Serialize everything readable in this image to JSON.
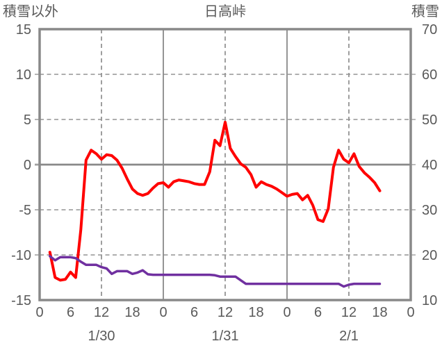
{
  "header": {
    "left_axis_title": "積雪以外",
    "chart_title": "日高峠",
    "right_axis_title": "積雪"
  },
  "colors": {
    "temperature_line": "#FF0000",
    "snow_line": "#7030A0",
    "axis_border": "#898989",
    "solid_grid": "#898989",
    "dashed_grid": "#949494",
    "tick_mark": "#A0A0A0",
    "text": "#595959",
    "background": "#FFFFFF"
  },
  "chart_data": {
    "type": "line",
    "title": "日高峠",
    "left_axis": {
      "label": "積雪以外",
      "min": -15,
      "max": 15,
      "tick_values": [
        15,
        10,
        5,
        0,
        -5,
        -10,
        -15
      ],
      "tick_labels": [
        "15",
        "10",
        "5",
        "0",
        "-5",
        "-10",
        "-15"
      ],
      "dashed_gridline_values": [
        10,
        5,
        -5,
        -10
      ],
      "solid_zero_value": 0
    },
    "right_axis": {
      "label": "積雪",
      "min": 10,
      "max": 70,
      "tick_values": [
        70,
        60,
        50,
        40,
        30,
        20,
        10
      ],
      "tick_labels": [
        "70",
        "60",
        "50",
        "40",
        "30",
        "20",
        "10"
      ]
    },
    "x_axis": {
      "min_hour": 0,
      "max_hour": 72,
      "tick_hours": [
        0,
        6,
        12,
        18,
        24,
        30,
        36,
        42,
        48,
        54,
        60,
        66,
        72
      ],
      "tick_labels": [
        "0",
        "6",
        "12",
        "18",
        "0",
        "6",
        "12",
        "18",
        "0",
        "6",
        "12",
        "18",
        "0"
      ],
      "date_labels": [
        {
          "text": "1/30",
          "hour": 12
        },
        {
          "text": "1/31",
          "hour": 36
        },
        {
          "text": "2/1",
          "hour": 60
        }
      ],
      "solid_vertical_hours": [
        24,
        48
      ],
      "dashed_vertical_hours": [
        12,
        36,
        60
      ]
    },
    "series": [
      {
        "name": "積雪以外",
        "axis": "left",
        "color": "#FF0000",
        "stroke_width": 4,
        "start_hour": 2,
        "step_hours": 1,
        "values": [
          -9.7,
          -12.5,
          -12.8,
          -12.7,
          -11.9,
          -12.5,
          -7.2,
          0.5,
          1.6,
          1.2,
          0.6,
          1.1,
          1.0,
          0.5,
          -0.4,
          -1.6,
          -2.7,
          -3.2,
          -3.4,
          -3.2,
          -2.6,
          -2.1,
          -2.0,
          -2.5,
          -1.9,
          -1.7,
          -1.8,
          -1.9,
          -2.1,
          -2.2,
          -2.2,
          -0.8,
          2.7,
          2.1,
          4.7,
          1.8,
          0.9,
          0.1,
          -0.3,
          -1.1,
          -2.5,
          -1.9,
          -2.2,
          -2.4,
          -2.7,
          -3.1,
          -3.5,
          -3.3,
          -3.2,
          -3.9,
          -3.4,
          -4.5,
          -6.1,
          -6.3,
          -4.9,
          -0.3,
          1.6,
          0.6,
          0.2,
          1.2,
          -0.2,
          -0.9,
          -1.4,
          -2.0,
          -2.9
        ]
      },
      {
        "name": "積雪",
        "axis": "right",
        "color": "#7030A0",
        "stroke_width": 3.5,
        "start_hour": 2,
        "step_hours": 1,
        "values": [
          19.7,
          18.8,
          19.5,
          19.5,
          19.5,
          19.3,
          18.5,
          17.8,
          17.8,
          17.8,
          17.3,
          17.0,
          15.8,
          16.4,
          16.4,
          16.4,
          15.8,
          16.1,
          16.6,
          15.7,
          15.6,
          15.6,
          15.6,
          15.6,
          15.6,
          15.6,
          15.6,
          15.6,
          15.6,
          15.6,
          15.6,
          15.6,
          15.5,
          15.2,
          15.2,
          15.2,
          15.2,
          14.4,
          13.6,
          13.6,
          13.6,
          13.6,
          13.6,
          13.6,
          13.6,
          13.6,
          13.6,
          13.6,
          13.6,
          13.6,
          13.6,
          13.6,
          13.6,
          13.6,
          13.6,
          13.6,
          13.6,
          13.0,
          13.4,
          13.6,
          13.6,
          13.6,
          13.6,
          13.6,
          13.6
        ]
      }
    ]
  }
}
